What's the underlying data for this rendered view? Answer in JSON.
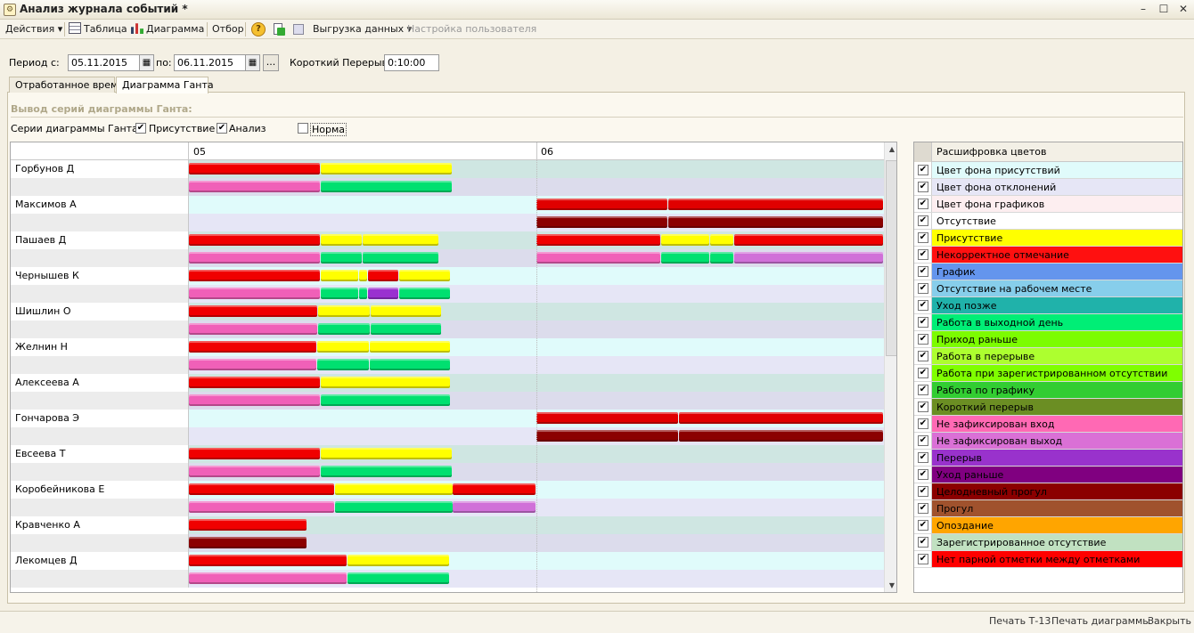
{
  "window": {
    "title": "Анализ журнала событий *",
    "minimize": "–",
    "maximize": "☐",
    "close": "✕"
  },
  "toolbar": {
    "actions": "Действия ▾",
    "table": "Таблица",
    "diagram": "Диаграмма",
    "filter": "Отбор",
    "help": "?",
    "export": "Выгрузка данных ▾",
    "user_settings": "Настройка пользователя"
  },
  "period": {
    "from_label": "Период с:",
    "from": "05.11.2015",
    "to_label": "по:",
    "to": "06.11.2015",
    "dots": "...",
    "short_break_label": "Короткий Перерыв",
    "short_break": "0:10:00"
  },
  "tabs": [
    {
      "label": "Отработанное время"
    },
    {
      "label": "Диаграмма Ганта"
    }
  ],
  "section_title": "Вывод серий диаграммы Ганта:",
  "series": {
    "label": "Серии диаграммы Ганта:",
    "presence": "Присутствие",
    "presence_checked": true,
    "analysis": "Анализ",
    "analysis_checked": true,
    "norm": "Норма",
    "norm_checked": false
  },
  "gantt": {
    "days": [
      "05",
      "06"
    ],
    "colors": {
      "lane_presence": "#cfe6e2",
      "lane_presence_alt": "#e0fbfb",
      "lane_analysis": "#dcdcec",
      "lane_analysis_alt": "#e6e6f6"
    },
    "employees": [
      {
        "name": "Горбунов Д",
        "presence": [
          [
            0,
            0.19,
            "#f00000"
          ],
          [
            0.19,
            0.38,
            "#ffff00"
          ]
        ],
        "analysis": [
          [
            0,
            0.19,
            "#f060b8"
          ],
          [
            0.19,
            0.38,
            "#00e070"
          ]
        ]
      },
      {
        "name": "Максимов А",
        "presence": [
          [
            0.5,
            0.69,
            "#e00000"
          ],
          [
            0.69,
            1.0,
            "#e00000"
          ]
        ],
        "analysis": [
          [
            0.5,
            0.69,
            "#8b0000"
          ],
          [
            0.69,
            1.0,
            "#8b0000"
          ]
        ]
      },
      {
        "name": "Пашаев Д",
        "presence": [
          [
            0,
            0.19,
            "#f00000"
          ],
          [
            0.19,
            0.25,
            "#ffff00"
          ],
          [
            0.25,
            0.36,
            "#ffff00"
          ],
          [
            0.5,
            0.68,
            "#f00000"
          ],
          [
            0.68,
            0.75,
            "#ffff00"
          ],
          [
            0.75,
            0.785,
            "#ffff00"
          ],
          [
            0.785,
            1.0,
            "#f00000"
          ]
        ],
        "analysis": [
          [
            0,
            0.19,
            "#f060b8"
          ],
          [
            0.19,
            0.25,
            "#00e070"
          ],
          [
            0.25,
            0.36,
            "#00e070"
          ],
          [
            0.5,
            0.68,
            "#f060b8"
          ],
          [
            0.68,
            0.75,
            "#00e070"
          ],
          [
            0.75,
            0.785,
            "#00e070"
          ],
          [
            0.785,
            1.0,
            "#d070d8"
          ]
        ]
      },
      {
        "name": "Чернышев К",
        "presence": [
          [
            0,
            0.19,
            "#f00000"
          ],
          [
            0.19,
            0.245,
            "#ffff00"
          ],
          [
            0.245,
            0.258,
            "#ffff00"
          ],
          [
            0.258,
            0.303,
            "#f00000"
          ],
          [
            0.303,
            0.377,
            "#ffff00"
          ]
        ],
        "analysis": [
          [
            0,
            0.19,
            "#f060b8"
          ],
          [
            0.19,
            0.245,
            "#00e070"
          ],
          [
            0.245,
            0.258,
            "#00e070"
          ],
          [
            0.258,
            0.303,
            "#9a30d0"
          ],
          [
            0.303,
            0.377,
            "#00e070"
          ]
        ]
      },
      {
        "name": "Шишлин О",
        "presence": [
          [
            0,
            0.186,
            "#f00000"
          ],
          [
            0.186,
            0.262,
            "#ffff00"
          ],
          [
            0.262,
            0.364,
            "#ffff00"
          ]
        ],
        "analysis": [
          [
            0,
            0.186,
            "#f060b8"
          ],
          [
            0.186,
            0.262,
            "#00e070"
          ],
          [
            0.262,
            0.364,
            "#00e070"
          ]
        ]
      },
      {
        "name": "Желнин Н",
        "presence": [
          [
            0,
            0.184,
            "#f00000"
          ],
          [
            0.184,
            0.26,
            "#ffff00"
          ],
          [
            0.26,
            0.377,
            "#ffff00"
          ]
        ],
        "analysis": [
          [
            0,
            0.184,
            "#f060b8"
          ],
          [
            0.184,
            0.26,
            "#00e070"
          ],
          [
            0.26,
            0.377,
            "#00e070"
          ]
        ]
      },
      {
        "name": "Алексеева А",
        "presence": [
          [
            0,
            0.19,
            "#f00000"
          ],
          [
            0.19,
            0.377,
            "#ffff00"
          ]
        ],
        "analysis": [
          [
            0,
            0.19,
            "#f060b8"
          ],
          [
            0.19,
            0.377,
            "#00e070"
          ]
        ]
      },
      {
        "name": "Гончарова Э",
        "presence": [
          [
            0.5,
            0.705,
            "#e00000"
          ],
          [
            0.705,
            1.0,
            "#e00000"
          ]
        ],
        "analysis": [
          [
            0.5,
            0.705,
            "#8b0000"
          ],
          [
            0.705,
            1.0,
            "#8b0000"
          ]
        ]
      },
      {
        "name": "Евсеева Т",
        "presence": [
          [
            0,
            0.19,
            "#f00000"
          ],
          [
            0.19,
            0.38,
            "#ffff00"
          ]
        ],
        "analysis": [
          [
            0,
            0.19,
            "#f060b8"
          ],
          [
            0.19,
            0.38,
            "#00e070"
          ]
        ]
      },
      {
        "name": "Коробейникова Е",
        "presence": [
          [
            0,
            0.21,
            "#f00000"
          ],
          [
            0.21,
            0.38,
            "#ffff00"
          ],
          [
            0.38,
            0.5,
            "#f00000"
          ]
        ],
        "analysis": [
          [
            0,
            0.21,
            "#f060b8"
          ],
          [
            0.21,
            0.38,
            "#00e070"
          ],
          [
            0.38,
            0.5,
            "#d070d8"
          ]
        ]
      },
      {
        "name": "Кравченко А",
        "presence": [
          [
            0,
            0.17,
            "#f00000"
          ]
        ],
        "analysis": [
          [
            0,
            0.17,
            "#8b0000"
          ]
        ]
      },
      {
        "name": "Лекомцев Д",
        "presence": [
          [
            0,
            0.228,
            "#f00000"
          ],
          [
            0.228,
            0.376,
            "#ffff00"
          ]
        ],
        "analysis": [
          [
            0,
            0.228,
            "#f060b8"
          ],
          [
            0.228,
            0.376,
            "#00e070"
          ]
        ]
      }
    ]
  },
  "legend": {
    "title": "Расшифровка цветов",
    "items": [
      {
        "label": "Цвет фона присутствий",
        "color": "#e0fbfb",
        "checked": true
      },
      {
        "label": "Цвет фона отклонений",
        "color": "#e6e6f6",
        "checked": true
      },
      {
        "label": "Цвет фона графиков",
        "color": "#fdeef0",
        "checked": true
      },
      {
        "label": "Отсутствие",
        "color": "#ffffff",
        "checked": true
      },
      {
        "label": "Присутствие",
        "color": "#ffff00",
        "checked": true
      },
      {
        "label": "Некорректное отмечание",
        "color": "#ff1010",
        "checked": true
      },
      {
        "label": "График",
        "color": "#6495ed",
        "checked": true
      },
      {
        "label": "Отсутствие на рабочем месте",
        "color": "#87ceeb",
        "checked": true
      },
      {
        "label": "Уход позже",
        "color": "#20b2aa",
        "checked": true
      },
      {
        "label": "Работа в выходной день",
        "color": "#00ee76",
        "checked": true
      },
      {
        "label": "Приход раньше",
        "color": "#7cfc00",
        "checked": true
      },
      {
        "label": "Работа в перерыве",
        "color": "#adff2f",
        "checked": true
      },
      {
        "label": "Работа при зарегистрированном отсутствии",
        "color": "#7fff00",
        "checked": true
      },
      {
        "label": "Работа по графику",
        "color": "#32cd32",
        "checked": true
      },
      {
        "label": "Короткий перерыв",
        "color": "#6b8e23",
        "checked": true
      },
      {
        "label": "Не зафиксирован вход",
        "color": "#ff69b4",
        "checked": true
      },
      {
        "label": "Не зафиксирован выход",
        "color": "#da70d6",
        "checked": true
      },
      {
        "label": "Перерыв",
        "color": "#9932cc",
        "checked": true
      },
      {
        "label": "Уход раньше",
        "color": "#800080",
        "checked": true
      },
      {
        "label": "Целодневный прогул",
        "color": "#8b0000",
        "checked": true
      },
      {
        "label": "Прогул",
        "color": "#a0522d",
        "checked": true
      },
      {
        "label": "Опоздание",
        "color": "#ffa500",
        "checked": true
      },
      {
        "label": "Зарегистрированное отсутствие",
        "color": "#c1e1c1",
        "checked": true
      },
      {
        "label": "Нет парной отметки между отметками",
        "color": "#ff0000",
        "checked": true
      }
    ]
  },
  "status": {
    "print_t13": "Печать Т-13",
    "print_diagram": "Печать диаграммы",
    "close": "Закрыть"
  }
}
